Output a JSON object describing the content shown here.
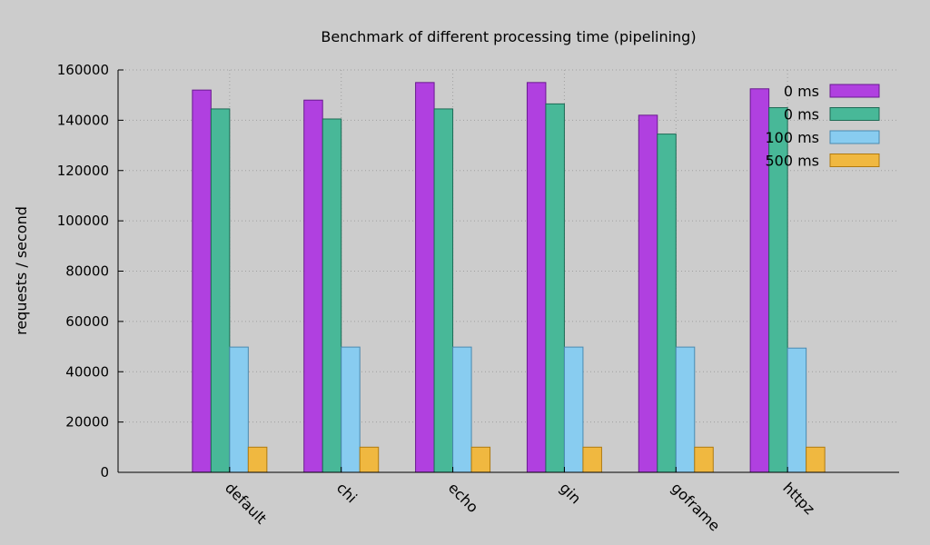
{
  "chart_data": {
    "type": "bar",
    "title": "Benchmark of different processing time (pipelining)",
    "xlabel": "",
    "ylabel": "requests / second",
    "ylim": [
      0,
      160000
    ],
    "yticks": [
      "0",
      "20000",
      "40000",
      "60000",
      "80000",
      "100000",
      "120000",
      "140000",
      "160000"
    ],
    "grid": true,
    "legend_position": "top-right",
    "categories": [
      "default",
      "chi",
      "echo",
      "gin",
      "goframe",
      "httpz"
    ],
    "series": [
      {
        "name": "0 ms",
        "color": "#b040e0",
        "stroke": "#6a1a90",
        "values": [
          152000,
          148000,
          155000,
          155000,
          142000,
          152500
        ]
      },
      {
        "name": "0 ms",
        "color": "#48b898",
        "stroke": "#1e6a55",
        "values": [
          144500,
          140500,
          144500,
          146500,
          134500,
          145000
        ]
      },
      {
        "name": "100 ms",
        "color": "#88ccf0",
        "stroke": "#4a8ab0",
        "values": [
          49800,
          49800,
          49800,
          49800,
          49800,
          49400
        ]
      },
      {
        "name": "500 ms",
        "color": "#f0b840",
        "stroke": "#b07a10",
        "values": [
          10000,
          10000,
          10000,
          10000,
          10000,
          10000
        ]
      }
    ]
  }
}
